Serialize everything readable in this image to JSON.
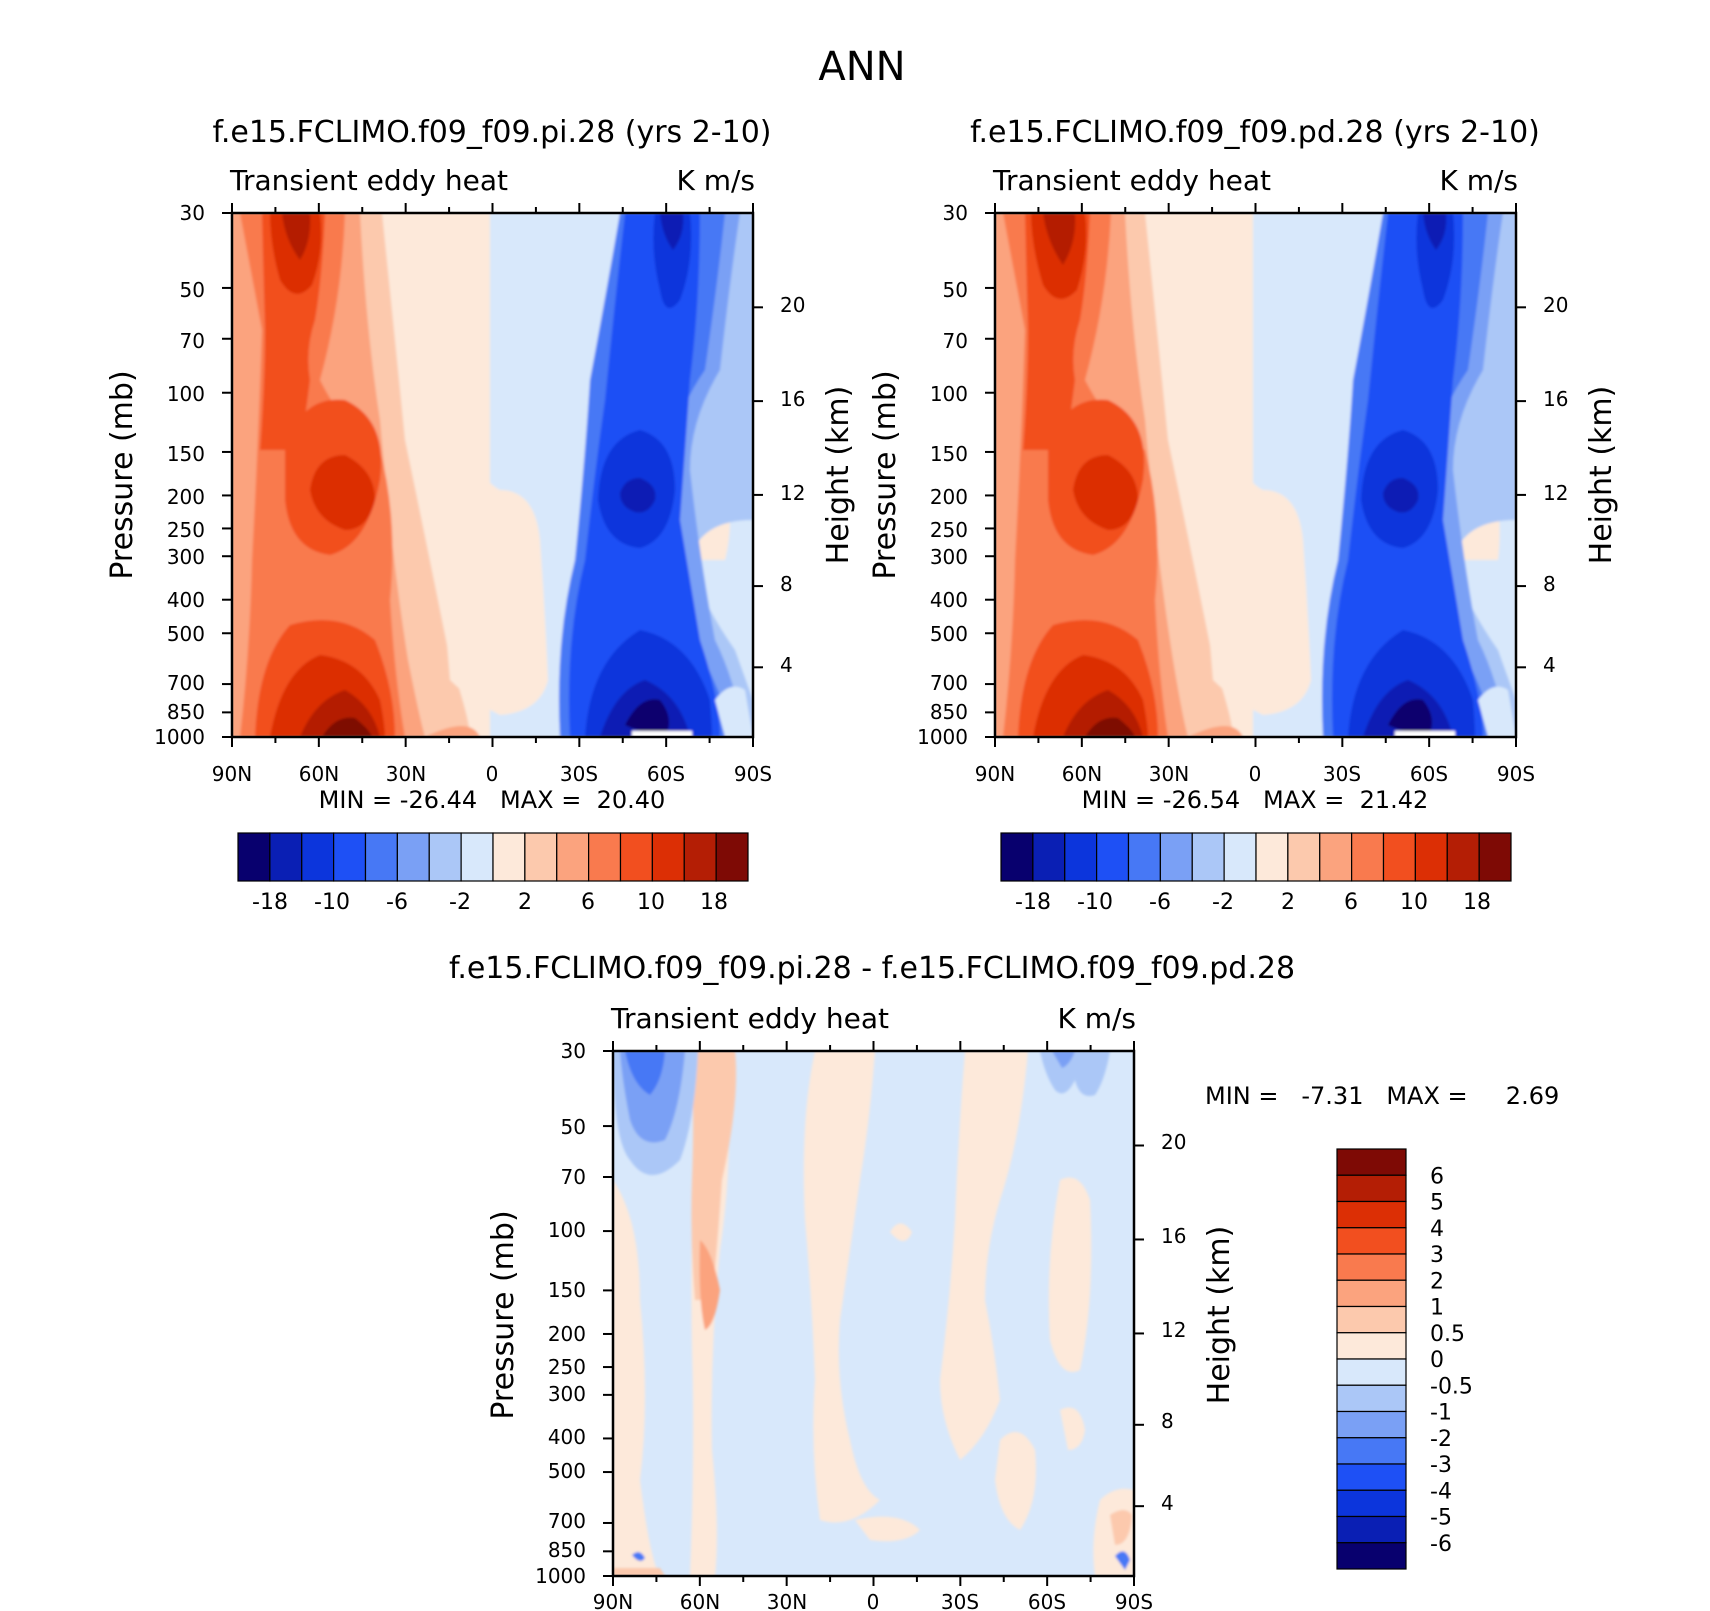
{
  "title": "ANN",
  "chart_data": [
    {
      "type": "heatmap",
      "title": "f.e15.FCLIMO.f09_f09.pi.28 (yrs 2-10)",
      "subtitle_left": "Transient eddy heat",
      "subtitle_right": "K m/s",
      "xlabel": "",
      "ylabel": "Pressure (mb)",
      "ylabel_right": "Height (km)",
      "x_ticks": [
        "90N",
        "60N",
        "30N",
        "0",
        "30S",
        "60S",
        "90S"
      ],
      "y_ticks": [
        "30",
        "50",
        "70",
        "100",
        "150",
        "200",
        "250",
        "300",
        "400",
        "500",
        "700",
        "850",
        "1000"
      ],
      "y_right_ticks": [
        "20",
        "16",
        "12",
        "8",
        "4"
      ],
      "stats": "MIN = -26.44   MAX =  20.40",
      "min": -26.44,
      "max": 20.4,
      "colorbar_orientation": "horizontal",
      "colorbar_labels": [
        "-18",
        "-10",
        "-6",
        "-2",
        "2",
        "6",
        "10",
        "18"
      ]
    },
    {
      "type": "heatmap",
      "title": "f.e15.FCLIMO.f09_f09.pd.28 (yrs 2-10)",
      "subtitle_left": "Transient eddy heat",
      "subtitle_right": "K m/s",
      "xlabel": "",
      "ylabel": "Pressure (mb)",
      "ylabel_right": "Height (km)",
      "x_ticks": [
        "90N",
        "60N",
        "30N",
        "0",
        "30S",
        "60S",
        "90S"
      ],
      "y_ticks": [
        "30",
        "50",
        "70",
        "100",
        "150",
        "200",
        "250",
        "300",
        "400",
        "500",
        "700",
        "850",
        "1000"
      ],
      "y_right_ticks": [
        "20",
        "16",
        "12",
        "8",
        "4"
      ],
      "stats": "MIN = -26.54   MAX =  21.42",
      "min": -26.54,
      "max": 21.42,
      "colorbar_orientation": "horizontal",
      "colorbar_labels": [
        "-18",
        "-10",
        "-6",
        "-2",
        "2",
        "6",
        "10",
        "18"
      ]
    },
    {
      "type": "heatmap",
      "title": "f.e15.FCLIMO.f09_f09.pi.28 - f.e15.FCLIMO.f09_f09.pd.28",
      "subtitle_left": "Transient eddy heat",
      "subtitle_right": "K m/s",
      "xlabel": "",
      "ylabel": "Pressure (mb)",
      "ylabel_right": "Height (km)",
      "x_ticks": [
        "90N",
        "60N",
        "30N",
        "0",
        "30S",
        "60S",
        "90S"
      ],
      "y_ticks": [
        "30",
        "50",
        "70",
        "100",
        "150",
        "200",
        "250",
        "300",
        "400",
        "500",
        "700",
        "850",
        "1000"
      ],
      "y_right_ticks": [
        "20",
        "16",
        "12",
        "8",
        "4"
      ],
      "stats": "MIN =   -7.31   MAX =     2.69",
      "min": -7.31,
      "max": 2.69,
      "colorbar_orientation": "vertical",
      "colorbar_labels": [
        "6",
        "5",
        "4",
        "3",
        "2",
        "1",
        "0.5",
        "0",
        "-0.5",
        "-1",
        "-2",
        "-3",
        "-4",
        "-5",
        "-6"
      ]
    }
  ],
  "colors": {
    "main_scale": [
      "#08006e",
      "#0a1fb4",
      "#0c35dc",
      "#1e50f5",
      "#4778f5",
      "#7aa0f5",
      "#abc7f7",
      "#d8e8fb",
      "#fde9da",
      "#fcc9ad",
      "#fba37e",
      "#f97a4e",
      "#f24f1f",
      "#dc2f05",
      "#b41e05",
      "#7e0a05"
    ],
    "diff_scale": [
      "#7e0a05",
      "#b41e05",
      "#dc2f05",
      "#f24f1f",
      "#f97a4e",
      "#fba37e",
      "#fcc9ad",
      "#fde9da",
      "#d8e8fb",
      "#abc7f7",
      "#7aa0f5",
      "#4778f5",
      "#1e50f5",
      "#0c35dc",
      "#0a1fb4",
      "#08006e"
    ]
  }
}
